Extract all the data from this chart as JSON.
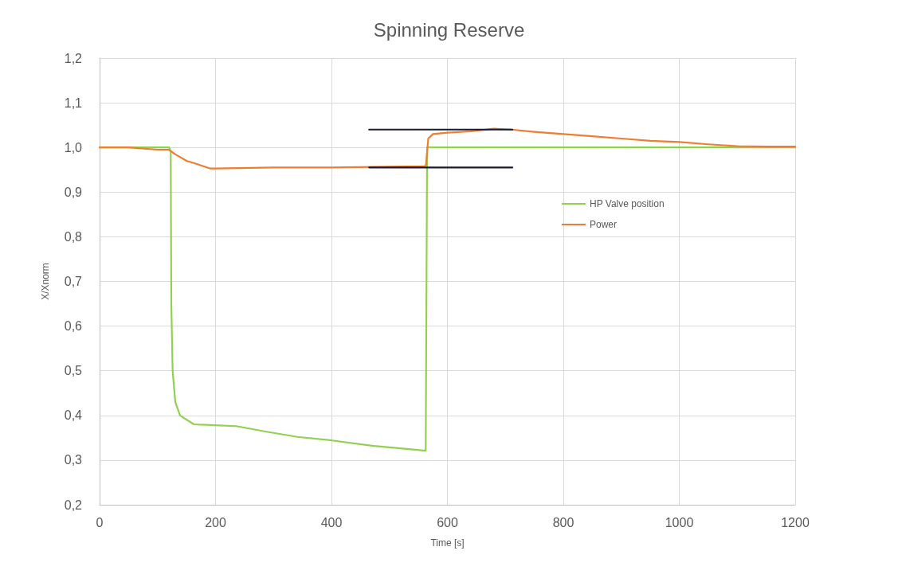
{
  "chart_data": {
    "type": "line",
    "title": "Spinning Reserve",
    "xlabel": "Time [s]",
    "ylabel": "X/Xnorm",
    "xlim": [
      0,
      1200
    ],
    "xticks": [
      0,
      200,
      400,
      600,
      800,
      1000,
      1200
    ],
    "ylim": [
      0.2,
      1.2
    ],
    "yticks": [
      {
        "value": 0.2,
        "label": "0,2"
      },
      {
        "value": 0.3,
        "label": "0,3"
      },
      {
        "value": 0.4,
        "label": "0,4"
      },
      {
        "value": 0.5,
        "label": "0,5"
      },
      {
        "value": 0.6,
        "label": "0,6"
      },
      {
        "value": 0.7,
        "label": "0,7"
      },
      {
        "value": 0.8,
        "label": "0,8"
      },
      {
        "value": 0.9,
        "label": "0,9"
      },
      {
        "value": 1.0,
        "label": "1,0"
      },
      {
        "value": 1.1,
        "label": "1,1"
      },
      {
        "value": 1.2,
        "label": "1,2"
      }
    ],
    "grid": true,
    "legend": "right",
    "marker": "none",
    "line_style": "solid",
    "series": [
      {
        "name": "HP Valve position",
        "color": "#92d050",
        "x": [
          0,
          120,
          122.7,
          123.7,
          126,
          130.6,
          138.8,
          162.6,
          199,
          236,
          286,
          341,
          401,
          470,
          562.6,
          565,
          600,
          800,
          1000,
          1200
        ],
        "values": [
          1.0,
          1.0,
          0.99,
          0.65,
          0.5,
          0.43,
          0.4,
          0.38,
          0.378,
          0.376,
          0.364,
          0.352,
          0.344,
          0.332,
          0.321,
          1.0,
          1.0,
          1.0,
          1.0,
          1.0
        ]
      },
      {
        "name": "Power",
        "color": "#ed7d31",
        "x": [
          0,
          50,
          100,
          120,
          130,
          150,
          170,
          190,
          200,
          300,
          400,
          500,
          560,
          563,
          567,
          575,
          600,
          640,
          680,
          710,
          750,
          800,
          850,
          900,
          950,
          1000,
          1050,
          1100,
          1150,
          1200
        ],
        "values": [
          1.0,
          1.0,
          0.995,
          0.995,
          0.985,
          0.97,
          0.962,
          0.953,
          0.953,
          0.955,
          0.955,
          0.957,
          0.958,
          0.96,
          1.02,
          1.03,
          1.033,
          1.036,
          1.042,
          1.04,
          1.035,
          1.03,
          1.025,
          1.02,
          1.015,
          1.012,
          1.007,
          1.003,
          1.002,
          1.002
        ]
      },
      {
        "color": "#1a1a33",
        "x": [
          465,
          712
        ],
        "values": [
          1.04,
          1.04
        ]
      },
      {
        "color": "#1a1a33",
        "x": [
          465,
          712
        ],
        "values": [
          0.955,
          0.955
        ]
      }
    ]
  }
}
